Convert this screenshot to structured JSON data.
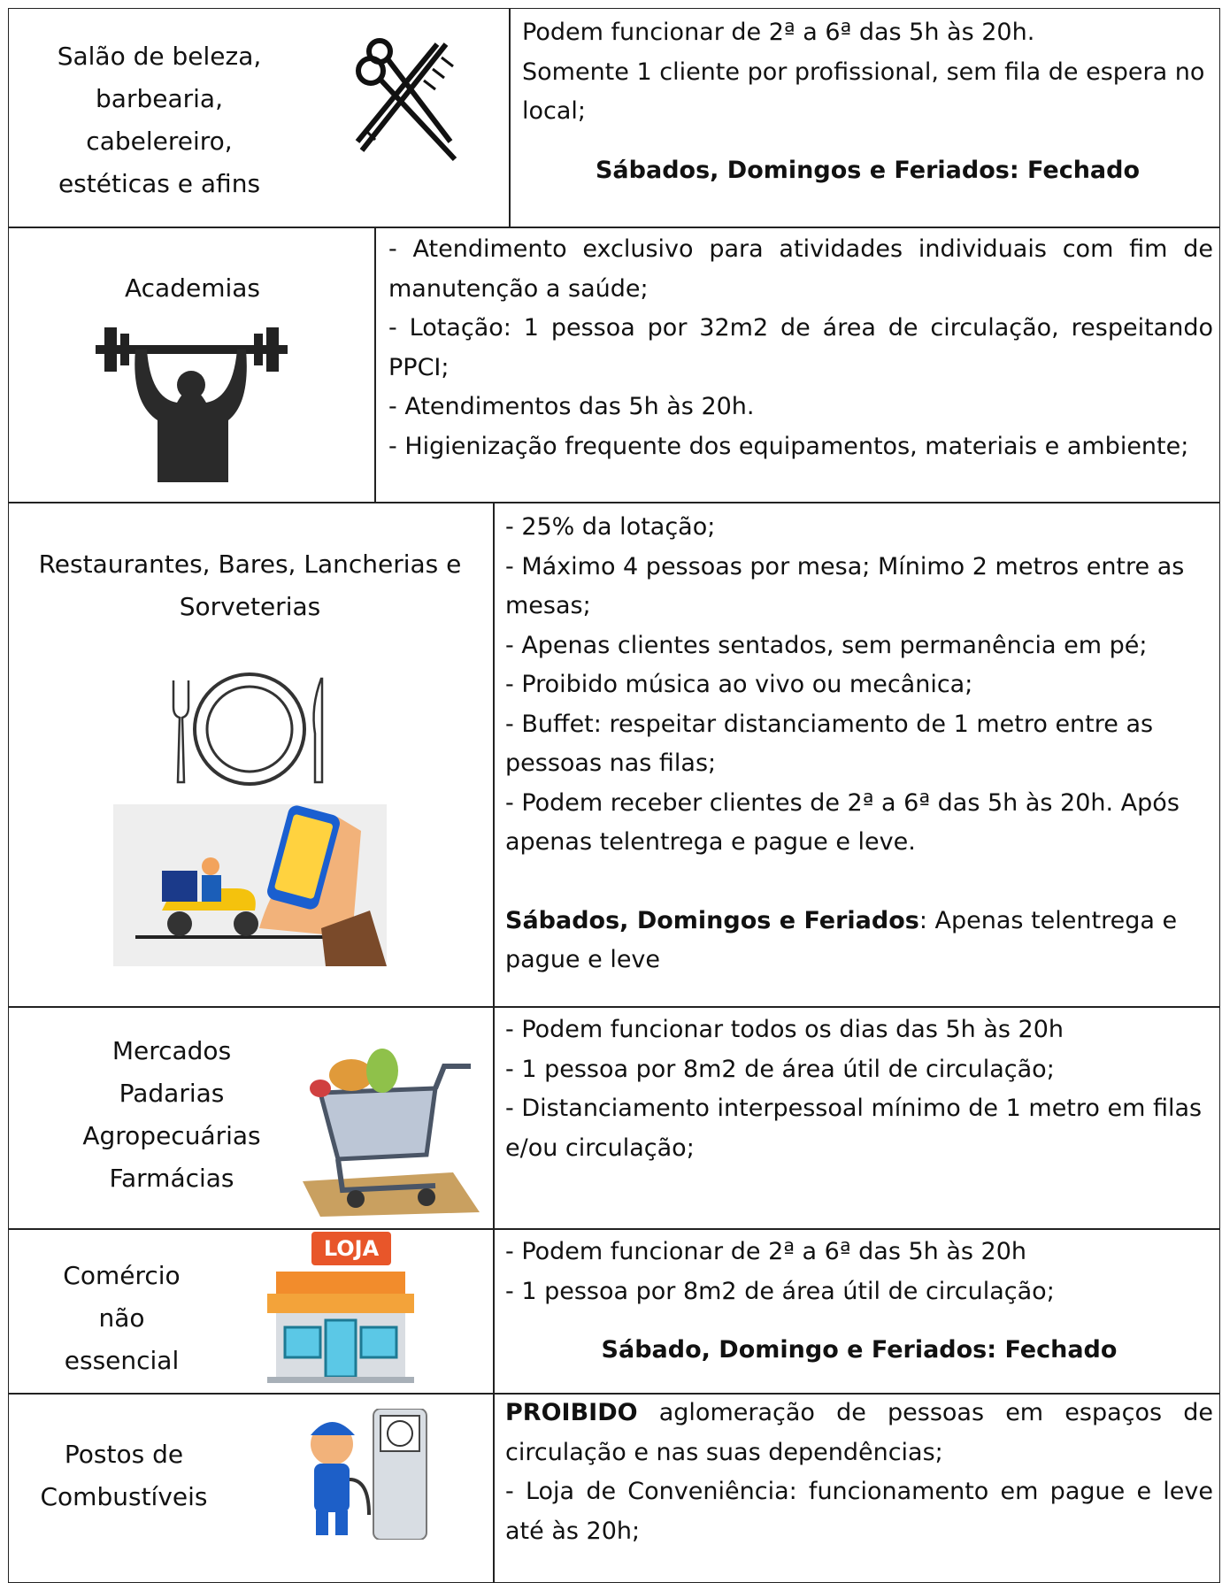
{
  "rows": [
    {
      "label": [
        "Salão de beleza,",
        "barbearia,",
        "cabelereiro,",
        "estéticas e afins"
      ],
      "content": [
        {
          "text": "Podem funcionar de 2ª a 6ª das 5h às 20h."
        },
        {
          "text": "Somente 1 cliente por profissional, sem fila de espera no local;"
        },
        {
          "heading": "Sábados, Domingos e Feriados: Fechado"
        }
      ]
    },
    {
      "label": [
        "Academias"
      ],
      "content": [
        {
          "text": "- Atendimento exclusivo para atividades individuais com fim de manutenção a saúde;"
        },
        {
          "text": "- Lotação: 1 pessoa por 32m2 de área de circulação, respeitando PPCI;"
        },
        {
          "text": "- Atendimentos das 5h às 20h."
        },
        {
          "text": "- Higienização frequente dos equipamentos, materiais e ambiente;"
        }
      ]
    },
    {
      "label": [
        "Restaurantes, Bares, Lancherias e Sorveterias"
      ],
      "content": [
        {
          "text": "- 25% da lotação;"
        },
        {
          "text": "- Máximo 4 pessoas por mesa; Mínimo 2 metros entre as mesas;"
        },
        {
          "text": "- Apenas clientes sentados, sem permanência em pé;"
        },
        {
          "text": "- Proibido música ao vivo ou mecânica;"
        },
        {
          "text": "- Buffet: respeitar distanciamento de 1 metro entre as pessoas nas filas;"
        },
        {
          "text": "- Podem receber clientes de 2ª a 6ª das 5h às 20h. Após apenas telentrega e pague e leve."
        },
        {
          "bold": "Sábados, Domingos e Feriados",
          "text": ": Apenas telentrega e pague e leve"
        }
      ]
    },
    {
      "label": [
        "Mercados",
        "Padarias",
        "Agropecuárias",
        "Farmácias"
      ],
      "content": [
        {
          "text": "- Podem funcionar todos os dias das 5h às 20h"
        },
        {
          "text": "- 1 pessoa por 8m2 de área útil de circulação;"
        },
        {
          "text": "- Distanciamento interpessoal mínimo de 1 metro em filas e/ou circulação;"
        }
      ]
    },
    {
      "label": [
        "Comércio",
        "não",
        "essencial"
      ],
      "content": [
        {
          "text": "- Podem funcionar de 2ª a 6ª das 5h às 20h"
        },
        {
          "text": "- 1 pessoa por 8m2 de área útil de circulação;"
        },
        {
          "heading": "Sábado, Domingo e Feriados: Fechado"
        }
      ]
    },
    {
      "label": [
        "Postos de",
        "Combustíveis"
      ],
      "content": [
        {
          "bold": "PROIBIDO",
          "text": " aglomeração de pessoas em espaços de circulação e nas suas dependências;"
        },
        {
          "text": "- Loja de Conveniência: funcionamento em pague e leve até às 20h;"
        }
      ]
    }
  ]
}
